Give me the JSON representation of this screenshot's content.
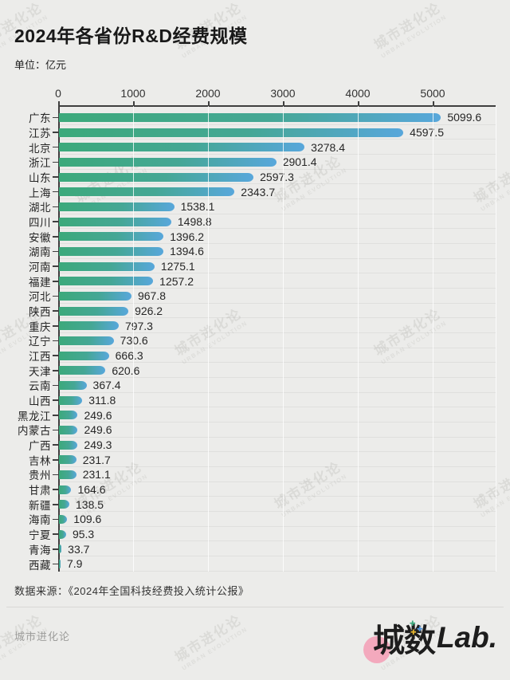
{
  "header": {
    "title": "2024年各省份R&D经费规模",
    "unit_label": "单位：亿元"
  },
  "watermark": {
    "line1": "城市进化论",
    "line2": "URBAN EVOLUTION"
  },
  "chart_data": {
    "type": "bar",
    "orientation": "horizontal",
    "title": "2024年各省份R&D经费规模",
    "unit": "亿元",
    "categories": [
      "广东",
      "江苏",
      "北京",
      "浙江",
      "山东",
      "上海",
      "湖北",
      "四川",
      "安徽",
      "湖南",
      "河南",
      "福建",
      "河北",
      "陕西",
      "重庆",
      "辽宁",
      "江西",
      "天津",
      "云南",
      "山西",
      "黑龙江",
      "内蒙古",
      "广西",
      "吉林",
      "贵州",
      "甘肃",
      "新疆",
      "海南",
      "宁夏",
      "青海",
      "西藏"
    ],
    "values": [
      5099.6,
      4597.5,
      3278.4,
      2901.4,
      2597.3,
      2343.7,
      1538.1,
      1498.8,
      1396.2,
      1394.6,
      1275.1,
      1257.2,
      967.8,
      926.2,
      797.3,
      730.6,
      666.3,
      620.6,
      367.4,
      311.8,
      249.6,
      249.6,
      249.3,
      231.7,
      231.1,
      164.6,
      138.5,
      109.6,
      95.3,
      33.7,
      7.9
    ],
    "x_ticks": [
      0,
      1000,
      2000,
      3000,
      4000,
      5000
    ],
    "xlim": [
      0,
      5840
    ],
    "grid": true,
    "bar_gradient": [
      "#3CA97B",
      "#58A7DB"
    ],
    "background_color": "#ECECEA"
  },
  "source": {
    "text": "数据来源：《2024年全国科技经费投入统计公报》"
  },
  "footer": {
    "brand_text": "城市进化论",
    "logo_cn": "城数",
    "logo_en": "Lab.",
    "logo_plus_glyph": "✚",
    "logo_circle_color": "#F3A9BD"
  }
}
